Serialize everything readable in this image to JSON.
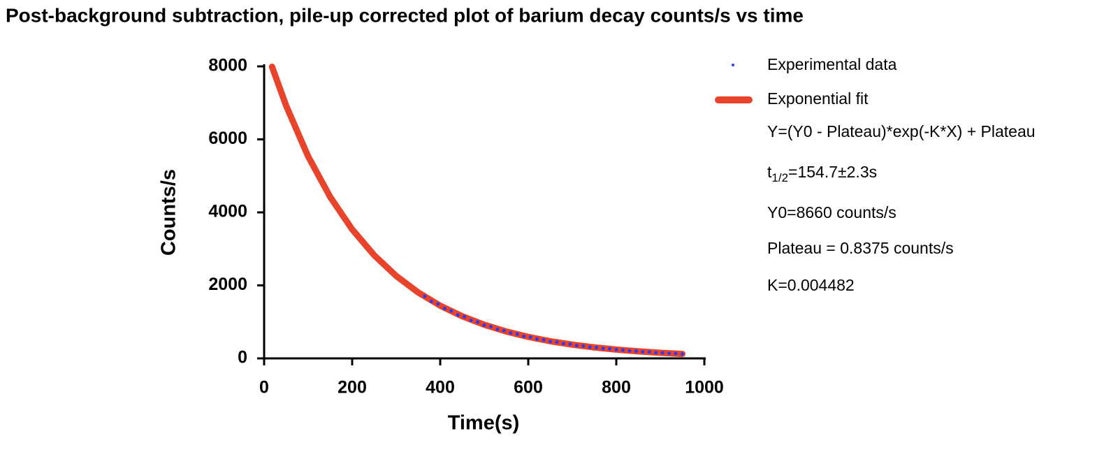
{
  "chart_data": {
    "type": "scatter",
    "title": "Post-background subtraction, pile-up corrected plot of barium decay counts/s vs time",
    "x_label": "Time(s)",
    "y_label": "Counts/s",
    "xlim": [
      0,
      1000
    ],
    "xticks": [
      0,
      200,
      400,
      600,
      800,
      1000
    ],
    "ylim": [
      0,
      8000
    ],
    "yticks": [
      0,
      2000,
      4000,
      6000,
      8000
    ],
    "series": [
      {
        "name": "Experimental data",
        "type": "scatter",
        "color": "#2b3cf2",
        "x": [
          365,
          380,
          395,
          410,
          425,
          440,
          455,
          470,
          485,
          500,
          515,
          530,
          545,
          560,
          575,
          590,
          605,
          620,
          635,
          650,
          665,
          680,
          695,
          710,
          725,
          740,
          755,
          770,
          785,
          800,
          815,
          830,
          845,
          860,
          875,
          890,
          905,
          920,
          935,
          950
        ],
        "values": [
          1700,
          1560,
          1490,
          1365,
          1300,
          1190,
          1140,
          1040,
          995,
          910,
          870,
          795,
          760,
          695,
          665,
          605,
          580,
          530,
          508,
          462,
          445,
          405,
          390,
          352,
          340,
          308,
          298,
          270,
          262,
          236,
          228,
          205,
          200,
          180,
          175,
          156,
          152,
          137,
          133,
          120
        ]
      },
      {
        "name": "Exponential fit",
        "type": "line",
        "color": "#e8432b",
        "x": [
          18,
          50,
          100,
          150,
          200,
          250,
          300,
          350,
          400,
          450,
          500,
          550,
          600,
          650,
          700,
          750,
          800,
          850,
          900,
          950
        ],
        "values": [
          7989,
          6922,
          5533,
          4423,
          3535,
          2826,
          2259,
          1806,
          1444,
          1154,
          922,
          737,
          589,
          471,
          377,
          301,
          241,
          193,
          154,
          123
        ]
      }
    ],
    "annotations": {
      "equation": "Y=(Y0 - Plateau)*exp(-K*X) + Plateau",
      "half_life": {
        "symbol": "t",
        "subscript": "1/2",
        "text": "=154.7±2.3s"
      },
      "y0": "Y0=8660 counts/s",
      "plateau": "Plateau = 0.8375 counts/s",
      "k": "K=0.004482"
    }
  }
}
